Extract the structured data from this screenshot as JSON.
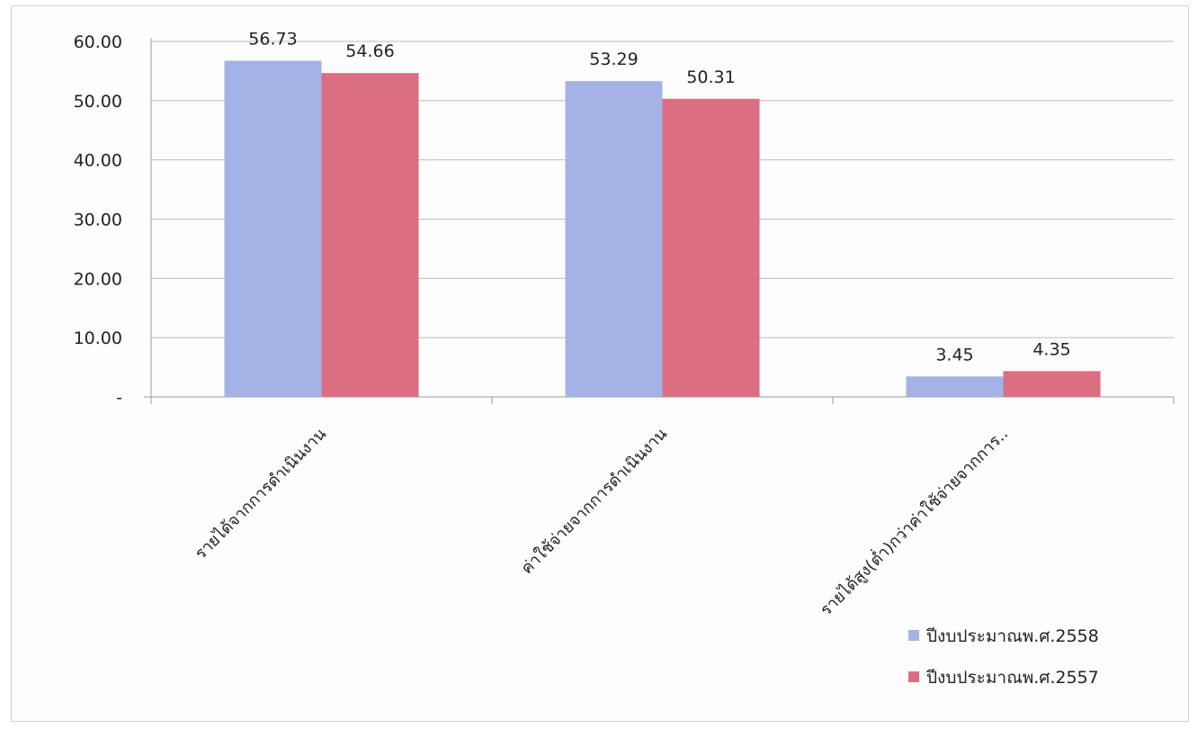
{
  "chart_data": {
    "type": "bar",
    "title": "",
    "xlabel": "",
    "ylabel": "",
    "categories": [
      "รายได้จากการดำเนินงาน",
      "ค่าใช้จ่ายจากการดำเนินงาน",
      "รายได้สูง(ต่ำ)กว่าค่าใช้จ่ายจากการ.."
    ],
    "series": [
      {
        "name": "ปีงบประมาณพ.ศ.2558",
        "values": [
          56.73,
          53.29,
          3.45
        ],
        "color": "#a4b2e6"
      },
      {
        "name": "ปีงบประมาณพ.ศ.2557",
        "values": [
          54.66,
          50.31,
          4.35
        ],
        "color": "#dc6e82"
      }
    ],
    "data_labels": [
      [
        "56.73",
        "53.29",
        "3.45"
      ],
      [
        "54.66",
        "50.31",
        "4.35"
      ]
    ],
    "ylim": [
      0,
      60
    ],
    "yticks": [
      0,
      10,
      20,
      30,
      40,
      50,
      60
    ],
    "ytick_labels": [
      "-",
      "10.00",
      "20.00",
      "30.00",
      "40.00",
      "50.00",
      "60.00"
    ],
    "grid": true,
    "legend_position": "bottom-right"
  }
}
